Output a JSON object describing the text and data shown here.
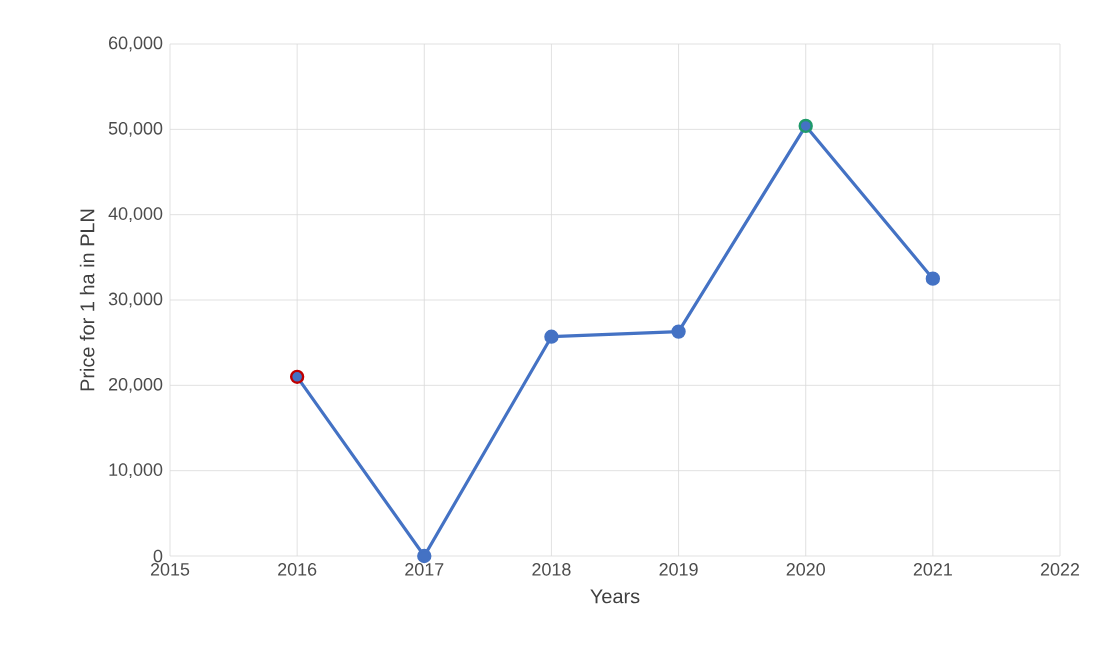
{
  "chart_data": {
    "type": "line",
    "xlabel": "Years",
    "ylabel": "Price for 1 ha in PLN",
    "x": [
      2016,
      2017,
      2018,
      2019,
      2020,
      2021
    ],
    "values": [
      21000,
      0,
      25700,
      26300,
      50400,
      32500
    ],
    "color": "#4472c4",
    "colors": [
      "#c00000",
      "#4472c4",
      "#4472c4",
      "#4472c4",
      "#1f9a6a",
      "#4472c4"
    ],
    "xlim": [
      2015,
      2022
    ],
    "xticks": [
      2015,
      2016,
      2017,
      2018,
      2019,
      2020,
      2021,
      2022
    ],
    "ylim": [
      0,
      60000
    ],
    "yticks": [
      {
        "value": 0,
        "label": "0"
      },
      {
        "value": 10000,
        "label": "10,000"
      },
      {
        "value": 20000,
        "label": "20,000"
      },
      {
        "value": 30000,
        "label": "30,000"
      },
      {
        "value": 40000,
        "label": "40,000"
      },
      {
        "value": 50000,
        "label": "50,000"
      },
      {
        "value": 60000,
        "label": "60,000"
      }
    ],
    "grid": true,
    "marker": "circle",
    "line_style": "solid"
  }
}
